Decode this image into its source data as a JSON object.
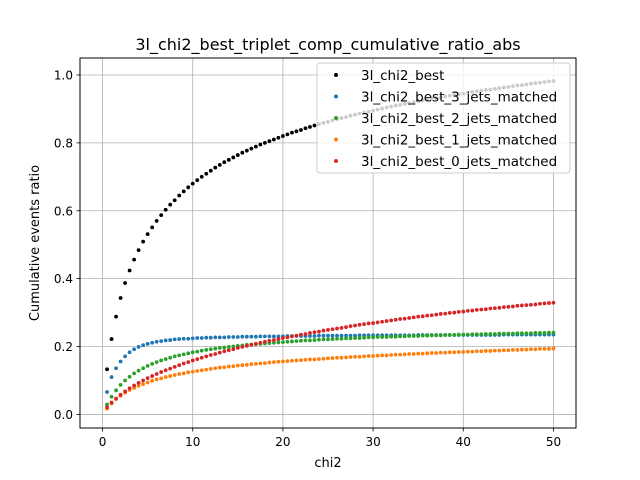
{
  "chart_data": {
    "type": "scatter",
    "title": "3l_chi2_best_triplet_comp_cumulative_ratio_abs",
    "xlabel": "chi2",
    "ylabel": "Cumulative events ratio",
    "xlim": [
      -2.5,
      52.5
    ],
    "ylim": [
      -0.04,
      1.05
    ],
    "xticks": [
      0,
      10,
      20,
      30,
      40,
      50
    ],
    "xtick_labels": [
      "0",
      "10",
      "20",
      "30",
      "40",
      "50"
    ],
    "yticks": [
      0.0,
      0.2,
      0.4,
      0.6,
      0.8,
      1.0
    ],
    "ytick_labels": [
      "0.0",
      "0.2",
      "0.4",
      "0.6",
      "0.8",
      "1.0"
    ],
    "grid": true,
    "legend_position": "top-right",
    "x_start": 0.5,
    "x_step": 0.5,
    "series": [
      {
        "name": "3l_chi2_best",
        "color": "#000000",
        "values": [
          0.133,
          0.222,
          0.288,
          0.343,
          0.387,
          0.424,
          0.456,
          0.484,
          0.509,
          0.531,
          0.551,
          0.57,
          0.587,
          0.603,
          0.618,
          0.631,
          0.645,
          0.657,
          0.669,
          0.68,
          0.69,
          0.7,
          0.709,
          0.718,
          0.727,
          0.735,
          0.743,
          0.75,
          0.757,
          0.764,
          0.771,
          0.777,
          0.783,
          0.789,
          0.795,
          0.8,
          0.805,
          0.81,
          0.815,
          0.82,
          0.825,
          0.83,
          0.834,
          0.838,
          0.843,
          0.847,
          0.851,
          0.855,
          0.859,
          0.862,
          0.866,
          0.87,
          0.873,
          0.876,
          0.88,
          0.883,
          0.886,
          0.889,
          0.892,
          0.895,
          0.898,
          0.901,
          0.904,
          0.907,
          0.91,
          0.912,
          0.915,
          0.917,
          0.92,
          0.923,
          0.925,
          0.927,
          0.93,
          0.932,
          0.934,
          0.937,
          0.939,
          0.941,
          0.943,
          0.945,
          0.947,
          0.95,
          0.952,
          0.954,
          0.956,
          0.957,
          0.959,
          0.961,
          0.963,
          0.965,
          0.967,
          0.969,
          0.97,
          0.972,
          0.974,
          0.976,
          0.977,
          0.979,
          0.981,
          0.982
        ]
      },
      {
        "name": "3l_chi2_best_3_jets_matched",
        "color": "#1f77b4",
        "values": [
          0.066,
          0.11,
          0.136,
          0.156,
          0.171,
          0.183,
          0.192,
          0.199,
          0.204,
          0.208,
          0.211,
          0.214,
          0.216,
          0.218,
          0.219,
          0.221,
          0.222,
          0.223,
          0.223,
          0.224,
          0.225,
          0.225,
          0.226,
          0.226,
          0.227,
          0.227,
          0.227,
          0.228,
          0.228,
          0.228,
          0.229,
          0.229,
          0.229,
          0.229,
          0.23,
          0.23,
          0.23,
          0.23,
          0.23,
          0.23,
          0.231,
          0.231,
          0.231,
          0.231,
          0.231,
          0.231,
          0.231,
          0.232,
          0.232,
          0.232,
          0.232,
          0.232,
          0.232,
          0.232,
          0.232,
          0.232,
          0.233,
          0.233,
          0.233,
          0.233,
          0.233,
          0.233,
          0.233,
          0.233,
          0.233,
          0.233,
          0.233,
          0.233,
          0.233,
          0.234,
          0.234,
          0.234,
          0.234,
          0.234,
          0.234,
          0.234,
          0.234,
          0.234,
          0.234,
          0.234,
          0.234,
          0.234,
          0.234,
          0.234,
          0.234,
          0.234,
          0.234,
          0.234,
          0.235,
          0.235,
          0.235,
          0.235,
          0.235,
          0.235,
          0.235,
          0.235,
          0.235,
          0.235,
          0.235,
          0.235
        ]
      },
      {
        "name": "3l_chi2_best_2_jets_matched",
        "color": "#2ca02c",
        "values": [
          0.029,
          0.052,
          0.071,
          0.087,
          0.1,
          0.111,
          0.121,
          0.129,
          0.136,
          0.143,
          0.149,
          0.154,
          0.159,
          0.163,
          0.167,
          0.171,
          0.174,
          0.177,
          0.18,
          0.183,
          0.185,
          0.188,
          0.19,
          0.192,
          0.194,
          0.196,
          0.197,
          0.199,
          0.2,
          0.202,
          0.203,
          0.205,
          0.206,
          0.207,
          0.208,
          0.209,
          0.21,
          0.211,
          0.212,
          0.213,
          0.214,
          0.215,
          0.216,
          0.217,
          0.218,
          0.218,
          0.219,
          0.22,
          0.221,
          0.221,
          0.222,
          0.223,
          0.223,
          0.224,
          0.224,
          0.225,
          0.225,
          0.226,
          0.227,
          0.227,
          0.228,
          0.228,
          0.228,
          0.229,
          0.229,
          0.23,
          0.23,
          0.231,
          0.231,
          0.231,
          0.232,
          0.232,
          0.233,
          0.233,
          0.233,
          0.234,
          0.234,
          0.234,
          0.235,
          0.235,
          0.235,
          0.236,
          0.236,
          0.236,
          0.237,
          0.237,
          0.237,
          0.238,
          0.238,
          0.238,
          0.238,
          0.239,
          0.239,
          0.239,
          0.239,
          0.24,
          0.24,
          0.24,
          0.241,
          0.241
        ]
      },
      {
        "name": "3l_chi2_best_1_jets_matched",
        "color": "#ff7f0e",
        "values": [
          0.017,
          0.032,
          0.045,
          0.055,
          0.064,
          0.072,
          0.078,
          0.084,
          0.089,
          0.094,
          0.099,
          0.103,
          0.106,
          0.11,
          0.113,
          0.116,
          0.119,
          0.121,
          0.124,
          0.126,
          0.128,
          0.13,
          0.132,
          0.134,
          0.136,
          0.138,
          0.139,
          0.141,
          0.142,
          0.144,
          0.145,
          0.146,
          0.148,
          0.149,
          0.15,
          0.151,
          0.153,
          0.154,
          0.155,
          0.156,
          0.157,
          0.158,
          0.159,
          0.16,
          0.161,
          0.162,
          0.162,
          0.163,
          0.164,
          0.165,
          0.166,
          0.167,
          0.167,
          0.168,
          0.169,
          0.17,
          0.17,
          0.171,
          0.172,
          0.172,
          0.173,
          0.174,
          0.174,
          0.175,
          0.176,
          0.176,
          0.177,
          0.178,
          0.178,
          0.179,
          0.179,
          0.18,
          0.181,
          0.181,
          0.182,
          0.182,
          0.183,
          0.183,
          0.184,
          0.184,
          0.185,
          0.185,
          0.186,
          0.186,
          0.187,
          0.187,
          0.188,
          0.188,
          0.189,
          0.189,
          0.19,
          0.19,
          0.191,
          0.191,
          0.192,
          0.192,
          0.193,
          0.193,
          0.193,
          0.194
        ]
      },
      {
        "name": "3l_chi2_best_0_jets_matched",
        "color": "#d62728",
        "values": [
          0.021,
          0.035,
          0.047,
          0.058,
          0.068,
          0.077,
          0.085,
          0.093,
          0.1,
          0.107,
          0.113,
          0.119,
          0.125,
          0.13,
          0.135,
          0.14,
          0.145,
          0.15,
          0.154,
          0.159,
          0.163,
          0.167,
          0.171,
          0.175,
          0.178,
          0.182,
          0.186,
          0.189,
          0.192,
          0.196,
          0.199,
          0.202,
          0.205,
          0.208,
          0.211,
          0.214,
          0.217,
          0.219,
          0.222,
          0.225,
          0.227,
          0.23,
          0.232,
          0.235,
          0.237,
          0.24,
          0.242,
          0.244,
          0.247,
          0.249,
          0.251,
          0.253,
          0.255,
          0.257,
          0.26,
          0.262,
          0.264,
          0.266,
          0.268,
          0.269,
          0.271,
          0.273,
          0.275,
          0.277,
          0.279,
          0.281,
          0.282,
          0.284,
          0.286,
          0.288,
          0.289,
          0.291,
          0.292,
          0.294,
          0.296,
          0.297,
          0.299,
          0.3,
          0.302,
          0.303,
          0.305,
          0.306,
          0.308,
          0.309,
          0.31,
          0.312,
          0.313,
          0.314,
          0.316,
          0.317,
          0.318,
          0.32,
          0.321,
          0.322,
          0.323,
          0.324,
          0.326,
          0.327,
          0.328,
          0.329
        ]
      }
    ]
  }
}
